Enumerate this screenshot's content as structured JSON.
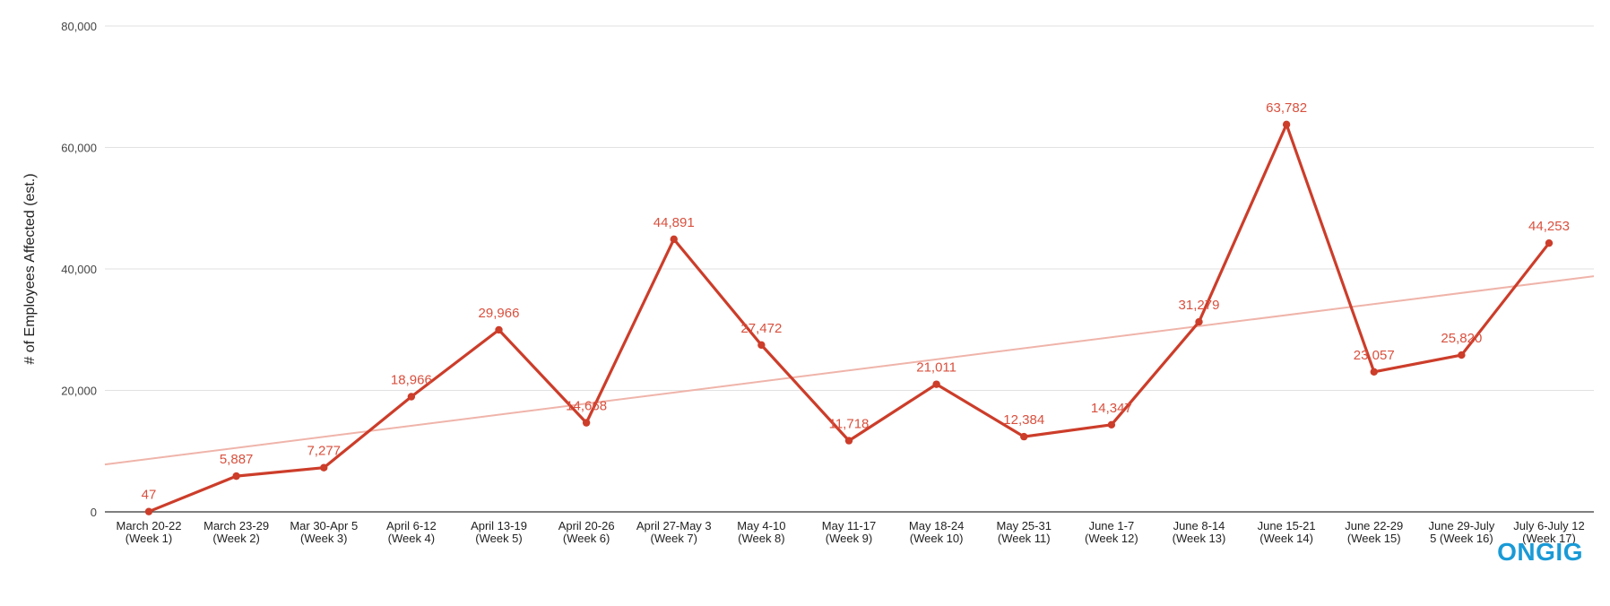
{
  "chart_data": {
    "type": "line",
    "title": "",
    "xlabel": "",
    "ylabel": "# of Employees Affected (est.)",
    "ylim": [
      0,
      80000
    ],
    "yticks": [
      0,
      20000,
      40000,
      60000,
      80000
    ],
    "ytick_labels": [
      "0",
      "20,000",
      "40,000",
      "60,000",
      "80,000"
    ],
    "grid": true,
    "categories": [
      [
        "March 20-22",
        "(Week 1)"
      ],
      [
        "March 23-29",
        "(Week 2)"
      ],
      [
        "Mar 30-Apr 5",
        "(Week 3)"
      ],
      [
        "April 6-12",
        "(Week 4)"
      ],
      [
        "April 13-19",
        "(Week 5)"
      ],
      [
        "April 20-26",
        "(Week 6)"
      ],
      [
        "April 27-May 3",
        "(Week 7)"
      ],
      [
        "May 4-10",
        "(Week 8)"
      ],
      [
        "May 11-17",
        "(Week 9)"
      ],
      [
        "May 18-24",
        "(Week 10)"
      ],
      [
        "May 25-31",
        "(Week 11)"
      ],
      [
        "June 1-7",
        "(Week 12)"
      ],
      [
        "June 8-14",
        "(Week 13)"
      ],
      [
        "June 15-21",
        "(Week 14)"
      ],
      [
        "June 22-29",
        "(Week 15)"
      ],
      [
        "June 29-July",
        "5 (Week 16)"
      ],
      [
        "July 6-July 12",
        "(Week 17)"
      ]
    ],
    "series": [
      {
        "name": "Employees Affected",
        "values": [
          47,
          5887,
          7277,
          18966,
          29966,
          14668,
          44891,
          27472,
          11718,
          21011,
          12384,
          14347,
          31279,
          63782,
          23057,
          25820,
          44253
        ],
        "labels": [
          "47",
          "5,887",
          "7,277",
          "18,966",
          "29,966",
          "14,668",
          "44,891",
          "27,472",
          "11,718",
          "21,011",
          "12,384",
          "14,347",
          "31,279",
          "63,782",
          "23,057",
          "25,820",
          "44,253"
        ]
      }
    ],
    "trendline": {
      "type": "linear",
      "start_value": 7800,
      "end_value": 38800
    },
    "colors": {
      "line": "#cc3d2a",
      "label": "#d9503e",
      "trend": "#efb4aa",
      "grid": "#e2e2e2"
    }
  },
  "brand": {
    "logo_text": "ONGIG"
  }
}
